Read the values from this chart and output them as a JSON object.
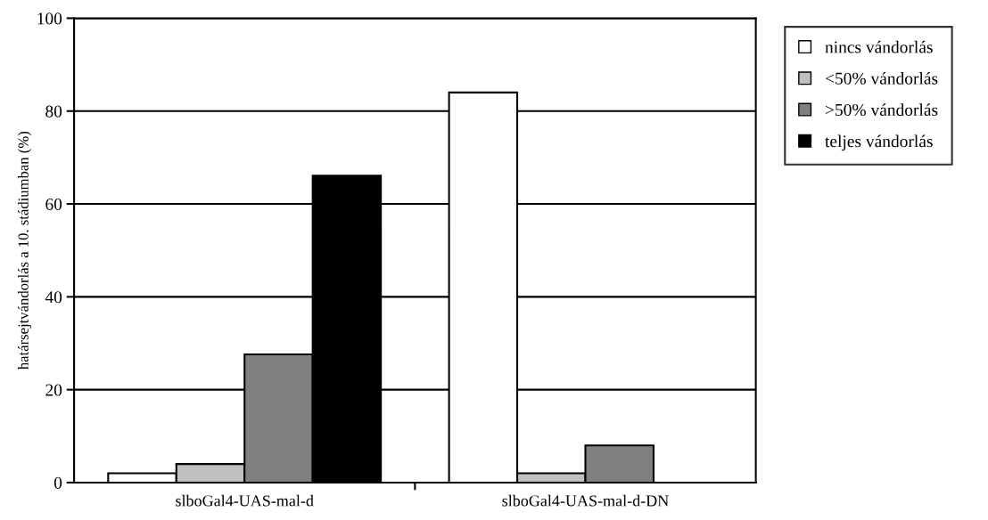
{
  "chart_data": {
    "type": "bar",
    "ylabel": "határsejtvándorlás a 10. stádiumban (%)",
    "categories": [
      "slboGal4-UAS-mal-d",
      "slboGal4-UAS-mal-d-DN"
    ],
    "series": [
      {
        "name": "nincs vándorlás",
        "color": "#ffffff",
        "values": [
          2,
          84
        ]
      },
      {
        "name": "<50% vándorlás",
        "color": "#c0c0c0",
        "values": [
          4,
          2
        ]
      },
      {
        "name": ">50% vándorlás",
        "color": "#808080",
        "values": [
          27.6,
          8
        ]
      },
      {
        "name": "teljes vándorlás",
        "color": "#000000",
        "values": [
          66.1,
          0
        ]
      }
    ],
    "ylim": [
      0,
      100
    ],
    "yticks": [
      0,
      20,
      40,
      60,
      80,
      100
    ],
    "grid": "y",
    "legend": "right"
  }
}
